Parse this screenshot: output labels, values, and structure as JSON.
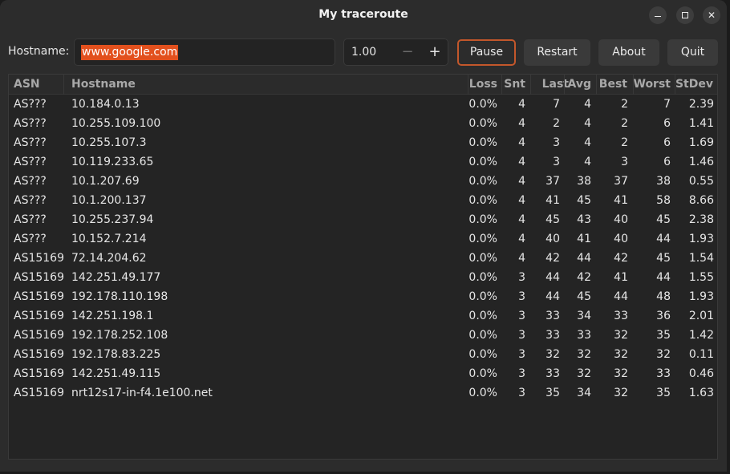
{
  "window": {
    "title": "My traceroute"
  },
  "toolbar": {
    "hostname_label": "Hostname:",
    "hostname_value": "www.google.com",
    "interval_value": "1.00",
    "decrement_glyph": "−",
    "increment_glyph": "+",
    "pause_label": "Pause",
    "restart_label": "Restart",
    "about_label": "About",
    "quit_label": "Quit"
  },
  "colors": {
    "accent": "#e2501d",
    "focus_border": "#c3572b"
  },
  "table": {
    "columns": [
      "ASN",
      "Hostname",
      "Loss",
      "Snt",
      "Last",
      "Avg",
      "Best",
      "Worst",
      "StDev"
    ],
    "rows": [
      [
        "AS???",
        "10.184.0.13",
        "0.0%",
        "4",
        "7",
        "4",
        "2",
        "7",
        "2.39"
      ],
      [
        "AS???",
        "10.255.109.100",
        "0.0%",
        "4",
        "2",
        "4",
        "2",
        "6",
        "1.41"
      ],
      [
        "AS???",
        "10.255.107.3",
        "0.0%",
        "4",
        "3",
        "4",
        "2",
        "6",
        "1.69"
      ],
      [
        "AS???",
        "10.119.233.65",
        "0.0%",
        "4",
        "3",
        "4",
        "3",
        "6",
        "1.46"
      ],
      [
        "AS???",
        "10.1.207.69",
        "0.0%",
        "4",
        "37",
        "38",
        "37",
        "38",
        "0.55"
      ],
      [
        "AS???",
        "10.1.200.137",
        "0.0%",
        "4",
        "41",
        "45",
        "41",
        "58",
        "8.66"
      ],
      [
        "AS???",
        "10.255.237.94",
        "0.0%",
        "4",
        "45",
        "43",
        "40",
        "45",
        "2.38"
      ],
      [
        "AS???",
        "10.152.7.214",
        "0.0%",
        "4",
        "40",
        "41",
        "40",
        "44",
        "1.93"
      ],
      [
        "AS15169",
        "72.14.204.62",
        "0.0%",
        "4",
        "42",
        "44",
        "42",
        "45",
        "1.54"
      ],
      [
        "AS15169",
        "142.251.49.177",
        "0.0%",
        "3",
        "44",
        "42",
        "41",
        "44",
        "1.55"
      ],
      [
        "AS15169",
        "192.178.110.198",
        "0.0%",
        "3",
        "44",
        "45",
        "44",
        "48",
        "1.93"
      ],
      [
        "AS15169",
        "142.251.198.1",
        "0.0%",
        "3",
        "33",
        "34",
        "33",
        "36",
        "2.01"
      ],
      [
        "AS15169",
        "192.178.252.108",
        "0.0%",
        "3",
        "33",
        "33",
        "32",
        "35",
        "1.42"
      ],
      [
        "AS15169",
        "192.178.83.225",
        "0.0%",
        "3",
        "32",
        "32",
        "32",
        "32",
        "0.11"
      ],
      [
        "AS15169",
        "142.251.49.115",
        "0.0%",
        "3",
        "33",
        "32",
        "32",
        "33",
        "0.46"
      ],
      [
        "AS15169",
        "nrt12s17-in-f4.1e100.net",
        "0.0%",
        "3",
        "35",
        "34",
        "32",
        "35",
        "1.63"
      ]
    ]
  }
}
